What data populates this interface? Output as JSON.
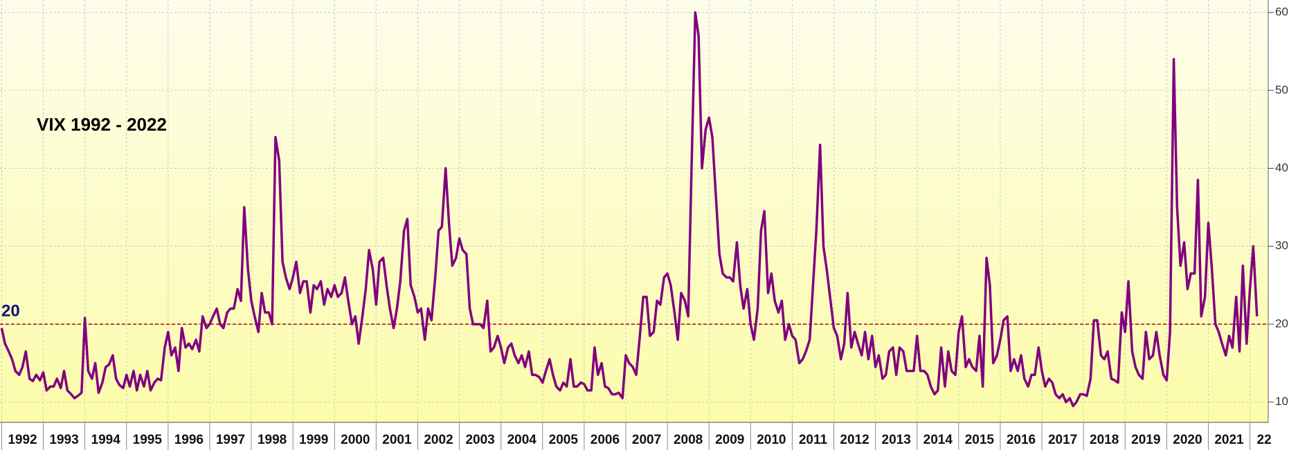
{
  "chart_data": {
    "type": "line",
    "title": "VIX 1992 - 2022",
    "color": "#800080",
    "reference_line": {
      "value": 20,
      "label": "20",
      "color": "#b00000"
    },
    "xlim": [
      1991.96,
      2022.44
    ],
    "ylim": [
      7.4,
      61.6
    ],
    "grid": true,
    "xticks": [
      1992,
      1993,
      1994,
      1995,
      1996,
      1997,
      1998,
      1999,
      2000,
      2001,
      2002,
      2003,
      2004,
      2005,
      2006,
      2007,
      2008,
      2009,
      2010,
      2011,
      2012,
      2013,
      2014,
      2015,
      2016,
      2017,
      2018,
      2019,
      2020,
      2021,
      {
        "value": 2022,
        "label": "22"
      }
    ],
    "yticks": [
      {
        "value": 10,
        "label": "10."
      },
      {
        "value": 20,
        "label": "20."
      },
      {
        "value": 30,
        "label": "30."
      },
      {
        "value": 40,
        "label": "40."
      },
      {
        "value": 50,
        "label": "50."
      },
      {
        "value": 60,
        "label": "60."
      }
    ],
    "x": [
      1992.0,
      1992.08,
      1992.17,
      1992.25,
      1992.33,
      1992.42,
      1992.5,
      1992.58,
      1992.67,
      1992.75,
      1992.83,
      1992.92,
      1993.0,
      1993.08,
      1993.17,
      1993.25,
      1993.33,
      1993.42,
      1993.5,
      1993.58,
      1993.67,
      1993.75,
      1993.83,
      1993.92,
      1994.0,
      1994.08,
      1994.17,
      1994.25,
      1994.33,
      1994.42,
      1994.5,
      1994.58,
      1994.67,
      1994.75,
      1994.83,
      1994.92,
      1995.0,
      1995.08,
      1995.17,
      1995.25,
      1995.33,
      1995.42,
      1995.5,
      1995.58,
      1995.67,
      1995.75,
      1995.83,
      1995.92,
      1996.0,
      1996.08,
      1996.17,
      1996.25,
      1996.33,
      1996.42,
      1996.5,
      1996.58,
      1996.67,
      1996.75,
      1996.83,
      1996.92,
      1997.0,
      1997.08,
      1997.17,
      1997.25,
      1997.33,
      1997.42,
      1997.5,
      1997.58,
      1997.67,
      1997.75,
      1997.83,
      1997.92,
      1998.0,
      1998.08,
      1998.17,
      1998.25,
      1998.33,
      1998.42,
      1998.5,
      1998.58,
      1998.67,
      1998.75,
      1998.83,
      1998.92,
      1999.0,
      1999.08,
      1999.17,
      1999.25,
      1999.33,
      1999.42,
      1999.5,
      1999.58,
      1999.67,
      1999.75,
      1999.83,
      1999.92,
      2000.0,
      2000.08,
      2000.17,
      2000.25,
      2000.33,
      2000.42,
      2000.5,
      2000.58,
      2000.67,
      2000.75,
      2000.83,
      2000.92,
      2001.0,
      2001.08,
      2001.17,
      2001.25,
      2001.33,
      2001.42,
      2001.5,
      2001.58,
      2001.67,
      2001.75,
      2001.83,
      2001.92,
      2002.0,
      2002.08,
      2002.17,
      2002.25,
      2002.33,
      2002.42,
      2002.5,
      2002.58,
      2002.67,
      2002.75,
      2002.83,
      2002.92,
      2003.0,
      2003.08,
      2003.17,
      2003.25,
      2003.33,
      2003.42,
      2003.5,
      2003.58,
      2003.67,
      2003.75,
      2003.83,
      2003.92,
      2004.0,
      2004.08,
      2004.17,
      2004.25,
      2004.33,
      2004.42,
      2004.5,
      2004.58,
      2004.67,
      2004.75,
      2004.83,
      2004.92,
      2005.0,
      2005.08,
      2005.17,
      2005.25,
      2005.33,
      2005.42,
      2005.5,
      2005.58,
      2005.67,
      2005.75,
      2005.83,
      2005.92,
      2006.0,
      2006.08,
      2006.17,
      2006.25,
      2006.33,
      2006.42,
      2006.5,
      2006.58,
      2006.67,
      2006.75,
      2006.83,
      2006.92,
      2007.0,
      2007.08,
      2007.17,
      2007.25,
      2007.33,
      2007.42,
      2007.5,
      2007.58,
      2007.67,
      2007.75,
      2007.83,
      2007.92,
      2008.0,
      2008.08,
      2008.17,
      2008.25,
      2008.33,
      2008.42,
      2008.5,
      2008.58,
      2008.67,
      2008.75,
      2008.83,
      2008.92,
      2009.0,
      2009.08,
      2009.17,
      2009.25,
      2009.33,
      2009.42,
      2009.5,
      2009.58,
      2009.67,
      2009.75,
      2009.83,
      2009.92,
      2010.0,
      2010.08,
      2010.17,
      2010.25,
      2010.33,
      2010.42,
      2010.5,
      2010.58,
      2010.67,
      2010.75,
      2010.83,
      2010.92,
      2011.0,
      2011.08,
      2011.17,
      2011.25,
      2011.33,
      2011.42,
      2011.5,
      2011.58,
      2011.67,
      2011.75,
      2011.83,
      2011.92,
      2012.0,
      2012.08,
      2012.17,
      2012.25,
      2012.33,
      2012.42,
      2012.5,
      2012.58,
      2012.67,
      2012.75,
      2012.83,
      2012.92,
      2013.0,
      2013.08,
      2013.17,
      2013.25,
      2013.33,
      2013.42,
      2013.5,
      2013.58,
      2013.67,
      2013.75,
      2013.83,
      2013.92,
      2014.0,
      2014.08,
      2014.17,
      2014.25,
      2014.33,
      2014.42,
      2014.5,
      2014.58,
      2014.67,
      2014.75,
      2014.83,
      2014.92,
      2015.0,
      2015.08,
      2015.17,
      2015.25,
      2015.33,
      2015.42,
      2015.5,
      2015.58,
      2015.67,
      2015.75,
      2015.83,
      2015.92,
      2016.0,
      2016.08,
      2016.17,
      2016.25,
      2016.33,
      2016.42,
      2016.5,
      2016.58,
      2016.67,
      2016.75,
      2016.83,
      2016.92,
      2017.0,
      2017.08,
      2017.17,
      2017.25,
      2017.33,
      2017.42,
      2017.5,
      2017.58,
      2017.67,
      2017.75,
      2017.83,
      2017.92,
      2018.0,
      2018.08,
      2018.17,
      2018.25,
      2018.33,
      2018.42,
      2018.5,
      2018.58,
      2018.67,
      2018.75,
      2018.83,
      2018.92,
      2019.0,
      2019.08,
      2019.17,
      2019.25,
      2019.33,
      2019.42,
      2019.5,
      2019.58,
      2019.67,
      2019.75,
      2019.83,
      2019.92,
      2020.0,
      2020.08,
      2020.17,
      2020.25,
      2020.33,
      2020.42,
      2020.5,
      2020.58,
      2020.67,
      2020.75,
      2020.83,
      2020.92,
      2021.0,
      2021.08,
      2021.17,
      2021.25,
      2021.33,
      2021.42,
      2021.5,
      2021.58,
      2021.67,
      2021.75,
      2021.83,
      2021.92,
      2022.0,
      2022.08,
      2022.17
    ],
    "values": [
      19.5,
      17.5,
      16.5,
      15.5,
      14,
      13.5,
      14.5,
      16.5,
      13,
      12.7,
      13.5,
      12.8,
      13.8,
      11.5,
      12,
      12,
      13,
      11.8,
      14,
      11.5,
      11,
      10.5,
      10.8,
      11.2,
      20.8,
      14,
      13,
      15,
      11.2,
      12.5,
      14.5,
      14.8,
      16,
      13,
      12.2,
      11.8,
      13.5,
      12,
      14,
      11.5,
      13.5,
      12,
      14,
      11.5,
      12.5,
      13,
      12.8,
      17,
      19,
      16,
      17,
      14,
      19.5,
      17,
      17.5,
      16.8,
      18,
      16.5,
      21,
      19.5,
      20,
      21,
      22,
      20,
      19.5,
      21.5,
      22,
      22,
      24.5,
      23,
      35,
      27,
      23,
      21,
      19,
      24,
      21.5,
      21.5,
      20,
      44,
      41,
      28,
      26,
      24.5,
      26,
      28,
      24,
      25.5,
      25.5,
      21.5,
      25,
      24.5,
      25.5,
      22.5,
      24.5,
      23.5,
      25,
      23.5,
      24,
      26,
      23,
      20,
      21,
      17.5,
      21,
      24.5,
      29.5,
      27,
      22.5,
      28,
      28.5,
      25,
      22,
      19.5,
      22,
      25.5,
      32,
      33.5,
      25,
      23.5,
      21.5,
      22,
      18,
      22,
      20.5,
      26,
      32,
      32.5,
      40,
      33,
      27.5,
      28.5,
      31,
      29.5,
      29,
      22,
      20,
      20,
      20,
      19.5,
      23,
      16.5,
      17,
      18.5,
      17,
      15,
      17,
      17.5,
      16,
      15,
      16,
      14.5,
      16.5,
      13.5,
      13.5,
      13.2,
      12.5,
      14,
      15.5,
      13.5,
      12,
      11.5,
      12.5,
      12,
      15.5,
      12,
      12,
      12.5,
      12.3,
      11.5,
      11.5,
      17,
      13.5,
      15,
      12,
      11.8,
      11,
      11,
      11.2,
      10.5,
      16,
      15,
      14.5,
      13.5,
      18,
      23.5,
      23.5,
      18.5,
      19,
      23,
      22.5,
      26,
      26.5,
      25,
      21.5,
      18,
      24,
      23,
      21,
      40,
      60,
      57,
      40,
      45,
      46.5,
      44,
      36,
      29,
      26.5,
      26,
      26,
      25.5,
      30.5,
      25,
      22,
      24.5,
      20,
      18,
      22,
      32,
      34.5,
      24,
      26.5,
      23,
      21.5,
      23,
      18,
      20,
      18.5,
      18,
      15,
      15.5,
      16.5,
      18,
      25,
      32,
      43,
      30,
      27,
      23,
      19.5,
      18.5,
      15.5,
      17.5,
      24,
      17,
      19,
      17.5,
      16,
      19,
      15.5,
      18.5,
      14.5,
      16,
      13,
      13.5,
      16.5,
      17,
      13.5,
      17,
      16.5,
      14,
      14,
      14,
      18.5,
      14,
      14,
      13.5,
      12,
      11,
      11.5,
      17,
      12,
      16.5,
      14,
      13.5,
      19,
      21,
      14.5,
      15.5,
      14.5,
      14,
      18.5,
      12,
      28.5,
      25,
      15,
      16,
      18,
      20.5,
      21,
      14,
      15.5,
      14,
      16,
      13,
      12,
      13.5,
      13.5,
      17,
      14,
      12,
      13,
      12.5,
      11,
      10.5,
      11,
      10,
      10.5,
      9.5,
      10,
      11,
      11,
      10.8,
      13,
      20.5,
      20.5,
      16,
      15.5,
      16.5,
      13,
      12.8,
      12.5,
      21.5,
      19,
      25.5,
      16.5,
      14.5,
      13.5,
      13,
      19,
      15.5,
      16,
      19,
      16,
      13.5,
      12.8,
      19,
      54,
      35,
      27.5,
      30.5,
      24.5,
      26.5,
      26.5,
      38.5,
      21,
      23.5,
      33,
      27.5,
      20,
      19,
      17.5,
      16,
      18.5,
      17,
      23.5,
      16.5,
      27.5,
      17.5,
      24.5,
      30,
      21
    ]
  }
}
